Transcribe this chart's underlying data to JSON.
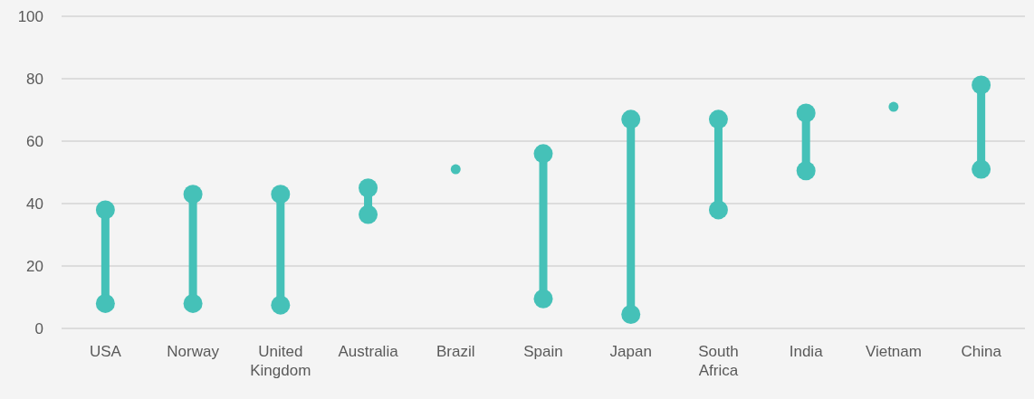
{
  "chart_data": {
    "type": "line",
    "categories": [
      "USA",
      "Norway",
      "United Kingdom",
      "Australia",
      "Brazil",
      "Spain",
      "Japan",
      "South Africa",
      "India",
      "Vietnam",
      "China"
    ],
    "series": [
      {
        "color": "#45c1b8",
        "x": [
          "USA",
          "USA"
        ],
        "values": [
          8,
          38
        ]
      },
      {
        "color": "#45c1b8",
        "x": [
          "Norway",
          "Norway"
        ],
        "values": [
          8,
          43
        ]
      },
      {
        "color": "#45c1b8",
        "x": [
          "United Kingdom",
          "United Kingdom"
        ],
        "values": [
          7.5,
          43
        ]
      },
      {
        "color": "#45c1b8",
        "x": [
          "Australia",
          "Australia"
        ],
        "values": [
          36.5,
          45
        ]
      },
      {
        "color": "#45c1b8",
        "x": [
          "Spain",
          "Spain"
        ],
        "values": [
          9.5,
          56
        ]
      },
      {
        "color": "#45c1b8",
        "x": [
          "Japan",
          "Japan"
        ],
        "values": [
          4.5,
          67
        ]
      },
      {
        "color": "#45c1b8",
        "x": [
          "South Africa",
          "South Africa"
        ],
        "values": [
          38,
          67
        ]
      },
      {
        "color": "#45c1b8",
        "x": [
          "India",
          "India"
        ],
        "values": [
          50.5,
          69
        ]
      },
      {
        "color": "#45c1b8",
        "x": [
          "China",
          "China"
        ],
        "values": [
          51,
          78
        ]
      },
      {
        "type": "scatter",
        "color": "#45c1b8",
        "x": [
          "Brazil",
          "Vietnam"
        ],
        "values": [
          51,
          71
        ]
      }
    ],
    "ylim": [
      0,
      100
    ],
    "yticks": [
      0,
      20,
      40,
      60,
      80,
      100
    ],
    "grid": "y",
    "marker": "circle",
    "line_style": "solid"
  }
}
